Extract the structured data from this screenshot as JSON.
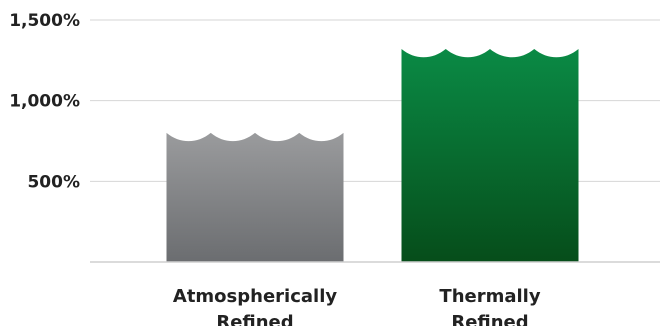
{
  "chart_data": {
    "type": "bar",
    "categories": [
      "Atmospherically Refined",
      "Thermally Refined"
    ],
    "category_lines": [
      [
        "Atmospherically",
        "Refined"
      ],
      [
        "Thermally",
        "Refined"
      ]
    ],
    "values": [
      800,
      1320
    ],
    "ylim": [
      0,
      1500
    ],
    "yticks": [
      500,
      1000,
      1500
    ],
    "ytick_labels": [
      "500%",
      "1,000%",
      "1,500%"
    ],
    "grid": true,
    "bar_colors": [
      {
        "top": "#9a9b9d",
        "bottom": "#6b6d70"
      },
      {
        "top": "#0a8a45",
        "bottom": "#064d1a"
      }
    ],
    "title": "",
    "xlabel": "",
    "ylabel": ""
  }
}
